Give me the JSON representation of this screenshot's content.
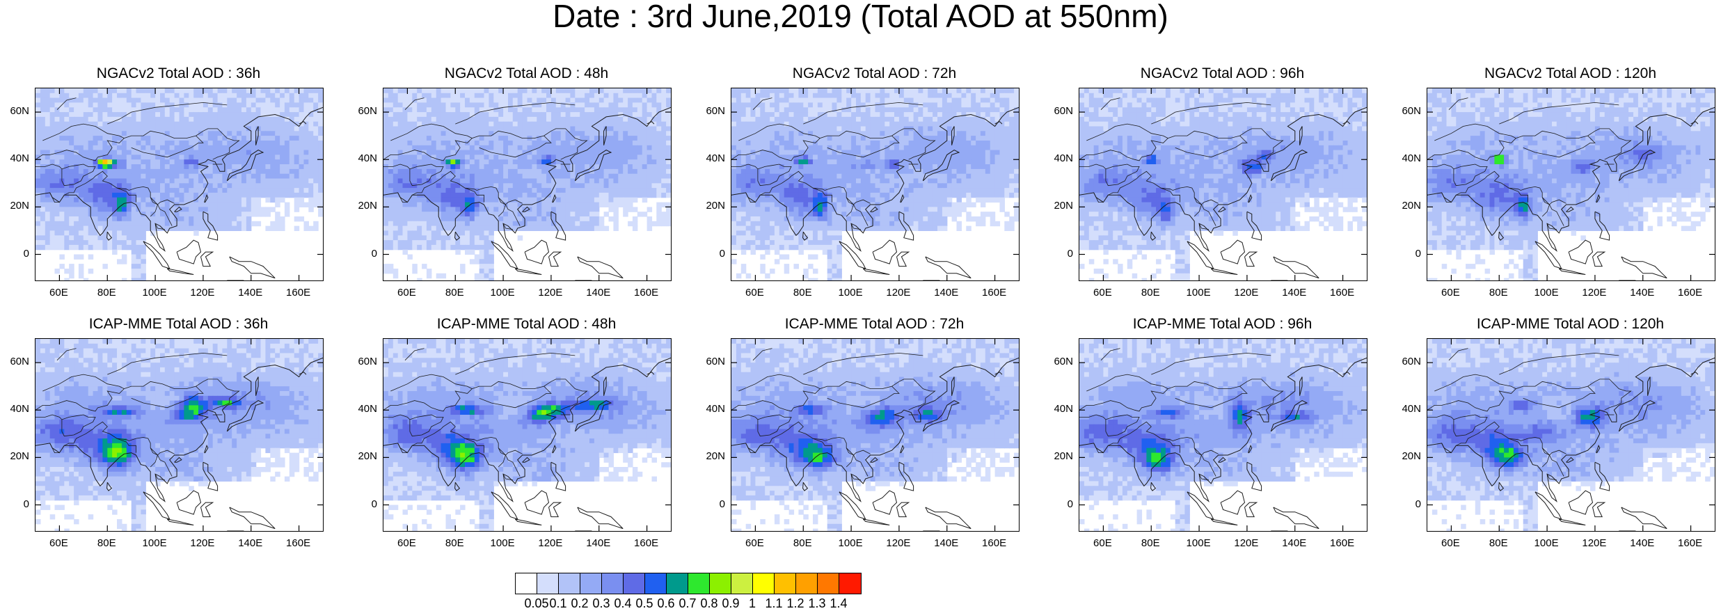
{
  "title": "Date : 3rd June,2019 (Total AOD at 550nm)",
  "panels": [
    {
      "title": "NGACv2 Total AOD : 36h",
      "model": "NGACv2",
      "lead": "36h"
    },
    {
      "title": "NGACv2 Total AOD : 48h",
      "model": "NGACv2",
      "lead": "48h"
    },
    {
      "title": "NGACv2 Total AOD : 72h",
      "model": "NGACv2",
      "lead": "72h"
    },
    {
      "title": "NGACv2 Total AOD : 96h",
      "model": "NGACv2",
      "lead": "96h"
    },
    {
      "title": "NGACv2 Total AOD : 120h",
      "model": "NGACv2",
      "lead": "120h"
    },
    {
      "title": "ICAP-MME Total AOD : 36h",
      "model": "ICAP-MME",
      "lead": "36h"
    },
    {
      "title": "ICAP-MME Total AOD : 48h",
      "model": "ICAP-MME",
      "lead": "48h"
    },
    {
      "title": "ICAP-MME Total AOD : 72h",
      "model": "ICAP-MME",
      "lead": "72h"
    },
    {
      "title": "ICAP-MME Total AOD : 96h",
      "model": "ICAP-MME",
      "lead": "96h"
    },
    {
      "title": "ICAP-MME Total AOD : 120h",
      "model": "ICAP-MME",
      "lead": "120h"
    }
  ],
  "lat_labels": [
    "60N",
    "40N",
    "20N",
    "0"
  ],
  "lon_labels": [
    "60E",
    "80E",
    "100E",
    "120E",
    "140E",
    "160E"
  ],
  "colorbar": {
    "labels": [
      "0.05",
      "0.1",
      "0.2",
      "0.3",
      "0.4",
      "0.5",
      "0.6",
      "0.7",
      "0.8",
      "0.9",
      "1",
      "1.1",
      "1.2",
      "1.3",
      "1.4"
    ],
    "colors": [
      "#ffffff",
      "#d4defc",
      "#b2c3f8",
      "#94aaf5",
      "#7a8ff0",
      "#5f6be6",
      "#2060f0",
      "#009a8c",
      "#2ee82e",
      "#8cf000",
      "#ccf040",
      "#ffff00",
      "#ffc000",
      "#ffa000",
      "#ff7800",
      "#ff1a00"
    ]
  }
}
